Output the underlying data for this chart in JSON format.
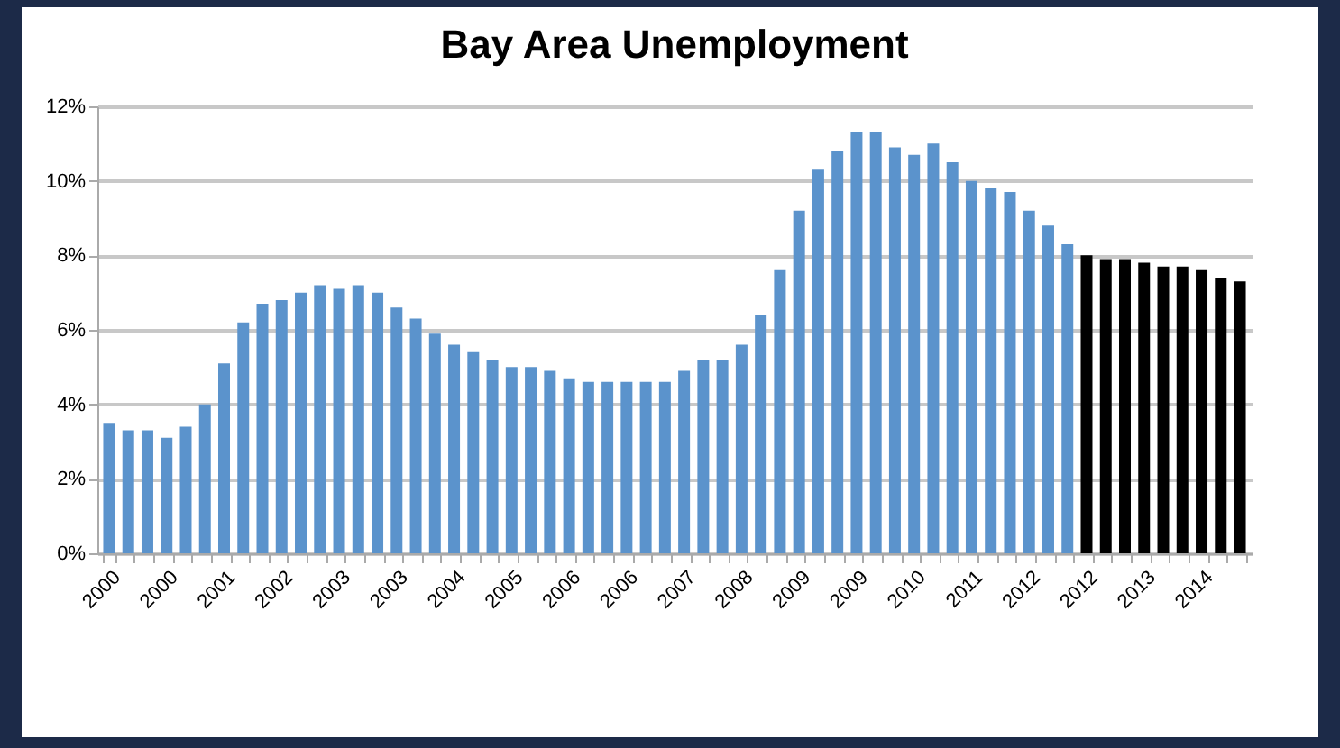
{
  "chart_data": {
    "type": "bar",
    "title": "Bay Area  Unemployment",
    "categories": [
      "2000",
      null,
      null,
      "2000",
      null,
      null,
      "2001",
      null,
      null,
      "2002",
      null,
      null,
      "2003",
      null,
      null,
      "2003",
      null,
      null,
      "2004",
      null,
      null,
      "2005",
      null,
      null,
      "2006",
      null,
      null,
      "2006",
      null,
      null,
      "2007",
      null,
      null,
      "2008",
      null,
      null,
      "2009",
      null,
      null,
      "2009",
      null,
      null,
      "2010",
      null,
      null,
      "2011",
      null,
      null,
      "2012",
      null,
      null,
      "2012",
      null,
      null,
      "2013",
      null,
      null,
      "2014",
      null,
      null
    ],
    "series": [
      {
        "color": "#5b93cc",
        "values": [
          3.5,
          3.3,
          3.3,
          3.1,
          3.4,
          4.0,
          5.1,
          6.2,
          6.7,
          6.8,
          7.0,
          7.2,
          7.1,
          7.2,
          7.0,
          6.6,
          6.3,
          5.9,
          5.6,
          5.4,
          5.2,
          5.0,
          5.0,
          4.9,
          4.7,
          4.6,
          4.6,
          4.6,
          4.6,
          4.6,
          4.9,
          5.2,
          5.2,
          5.6,
          6.4,
          7.6,
          9.2,
          10.3,
          10.8,
          11.3,
          11.3,
          10.9,
          10.7,
          11.0,
          10.5,
          10.0,
          9.8,
          9.7,
          9.2,
          8.8,
          8.3,
          null,
          null,
          null,
          null,
          null,
          null,
          null,
          null,
          null
        ]
      },
      {
        "color": "#000000",
        "values": [
          null,
          null,
          null,
          null,
          null,
          null,
          null,
          null,
          null,
          null,
          null,
          null,
          null,
          null,
          null,
          null,
          null,
          null,
          null,
          null,
          null,
          null,
          null,
          null,
          null,
          null,
          null,
          null,
          null,
          null,
          null,
          null,
          null,
          null,
          null,
          null,
          null,
          null,
          null,
          null,
          null,
          null,
          null,
          null,
          null,
          null,
          null,
          null,
          null,
          null,
          null,
          8.0,
          7.9,
          7.9,
          7.8,
          7.7,
          7.7,
          7.6,
          7.4,
          7.3
        ]
      }
    ],
    "ylim": [
      0,
      12
    ],
    "yticks": [
      {
        "value": 0,
        "label": "0%"
      },
      {
        "value": 2,
        "label": "2%"
      },
      {
        "value": 4,
        "label": "4%"
      },
      {
        "value": 6,
        "label": "6%"
      },
      {
        "value": 8,
        "label": "8%"
      },
      {
        "value": 10,
        "label": "10%"
      },
      {
        "value": 12,
        "label": "12%"
      }
    ],
    "grid": "y",
    "legend": false
  }
}
